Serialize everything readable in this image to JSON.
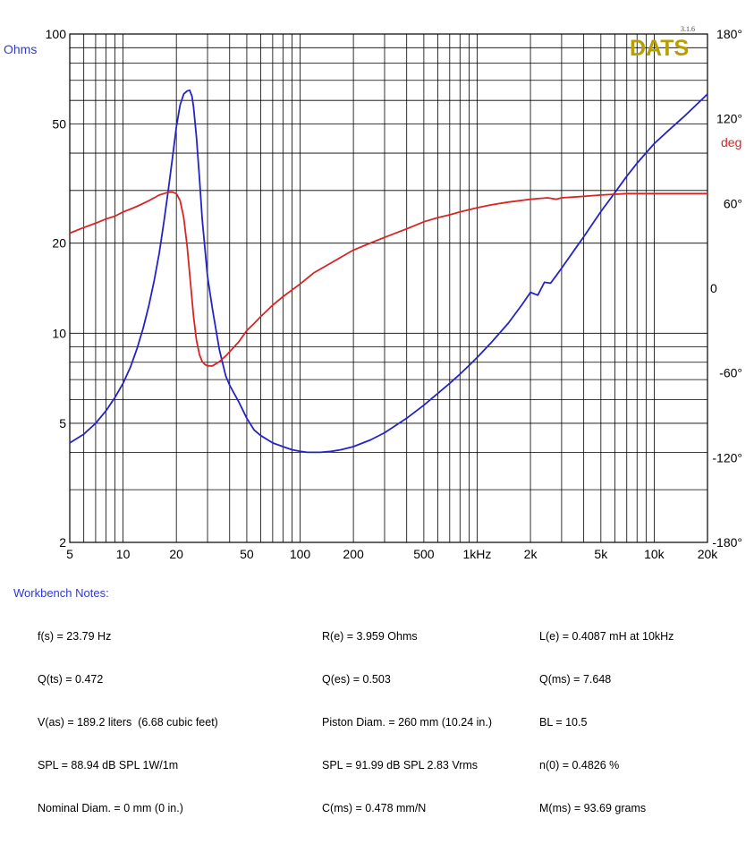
{
  "chart_data": {
    "type": "line",
    "title": "",
    "xlabel": "",
    "ylabel": "Ohms",
    "y2label": "deg",
    "x_scale": "log",
    "y_scale": "log",
    "xlim": [
      5,
      20000
    ],
    "ylim": [
      2,
      100
    ],
    "y2lim": [
      -180,
      180
    ],
    "grid": true,
    "logo": "DATS",
    "version": "3.1.6",
    "x_ticks": [
      {
        "value": 5,
        "label": "5"
      },
      {
        "value": 10,
        "label": "10"
      },
      {
        "value": 20,
        "label": "20"
      },
      {
        "value": 50,
        "label": "50"
      },
      {
        "value": 100,
        "label": "100"
      },
      {
        "value": 200,
        "label": "200"
      },
      {
        "value": 500,
        "label": "500"
      },
      {
        "value": 1000,
        "label": "1kHz"
      },
      {
        "value": 2000,
        "label": "2k"
      },
      {
        "value": 5000,
        "label": "5k"
      },
      {
        "value": 10000,
        "label": "10k"
      },
      {
        "value": 20000,
        "label": "20k"
      }
    ],
    "y_ticks": [
      {
        "value": 2,
        "label": "2"
      },
      {
        "value": 5,
        "label": "5"
      },
      {
        "value": 10,
        "label": "10"
      },
      {
        "value": 20,
        "label": "20"
      },
      {
        "value": 50,
        "label": "50"
      },
      {
        "value": 100,
        "label": "100"
      }
    ],
    "y2_ticks": [
      {
        "value": 180,
        "label": "180°"
      },
      {
        "value": 120,
        "label": "120°"
      },
      {
        "value": 60,
        "label": "60°"
      },
      {
        "value": 0,
        "label": "0"
      },
      {
        "value": -60,
        "label": "-60°"
      },
      {
        "value": -120,
        "label": "-120°"
      },
      {
        "value": -180,
        "label": "-180°"
      }
    ],
    "series": [
      {
        "color": "#2323c8",
        "axis": "left",
        "x": [
          5,
          6,
          7,
          8,
          9,
          10,
          11,
          12,
          13,
          14,
          15,
          16,
          17,
          18,
          19,
          20,
          21,
          22,
          23,
          23.79,
          24.5,
          25,
          26,
          27,
          28,
          30,
          32,
          35,
          38,
          40,
          45,
          50,
          55,
          60,
          70,
          80,
          90,
          100,
          110,
          120,
          130,
          150,
          170,
          200,
          250,
          300,
          400,
          500,
          600,
          700,
          800,
          900,
          1000,
          1200,
          1500,
          1800,
          2000,
          2200,
          2400,
          2600,
          2800,
          3000,
          3500,
          4000,
          5000,
          6000,
          7000,
          8000,
          10000,
          12000,
          15000,
          20000
        ],
        "y": [
          4.3,
          4.6,
          5.0,
          5.5,
          6.1,
          6.8,
          7.7,
          8.9,
          10.4,
          12.4,
          15.0,
          18.5,
          23.5,
          30.0,
          38.5,
          49.0,
          58.0,
          63.0,
          64.5,
          64.9,
          62.0,
          57.0,
          45.0,
          33.0,
          24.0,
          15.5,
          12.0,
          8.8,
          7.2,
          6.7,
          5.9,
          5.2,
          4.75,
          4.55,
          4.3,
          4.18,
          4.08,
          4.03,
          4.0,
          4.0,
          4.0,
          4.03,
          4.08,
          4.18,
          4.4,
          4.65,
          5.2,
          5.75,
          6.3,
          6.8,
          7.3,
          7.8,
          8.3,
          9.3,
          10.8,
          12.5,
          13.7,
          13.4,
          14.8,
          14.7,
          15.6,
          16.5,
          18.8,
          21.0,
          25.5,
          29.5,
          33.5,
          37.0,
          43.0,
          47.5,
          53.5,
          63.0
        ]
      },
      {
        "color": "#d92424",
        "axis": "right",
        "x": [
          5,
          6,
          7,
          8,
          9,
          10,
          11,
          12,
          13,
          14,
          15,
          16,
          17,
          18,
          19,
          20,
          21,
          22,
          23,
          24,
          25,
          26,
          27,
          28,
          29,
          30,
          32,
          35,
          38,
          40,
          45,
          50,
          55,
          60,
          70,
          80,
          100,
          120,
          150,
          200,
          250,
          300,
          400,
          500,
          600,
          700,
          800,
          1000,
          1200,
          1500,
          2000,
          2500,
          2800,
          3000,
          4000,
          5000,
          7000,
          10000,
          15000,
          20000
        ],
        "y": [
          39,
          43,
          46,
          49,
          51,
          54,
          56,
          58,
          60,
          62,
          64,
          66,
          67,
          68,
          68,
          67,
          62,
          50,
          30,
          5,
          -20,
          -37,
          -47,
          -52,
          -54,
          -55,
          -55,
          -52,
          -48,
          -45,
          -38,
          -30,
          -25,
          -20,
          -12,
          -6,
          3,
          11,
          18,
          27,
          32,
          36,
          42,
          47,
          50,
          52,
          54,
          57,
          59,
          61,
          63,
          64,
          63,
          64,
          65,
          66,
          67,
          67,
          67,
          67
        ]
      }
    ]
  },
  "notes": {
    "title": "Workbench Notes:",
    "col1": [
      "f(s) = 23.79 Hz",
      "Q(ts) = 0.472",
      "V(as) = 189.2 liters  (6.68 cubic feet)",
      "SPL = 88.94 dB SPL 1W/1m",
      "Nominal Diam. = 0 mm (0 in.)"
    ],
    "col2": [
      "R(e) = 3.959 Ohms",
      "Q(es) = 0.503",
      "Piston Diam. = 260 mm (10.24 in.)",
      "SPL = 91.99 dB SPL 2.83 Vrms",
      "C(ms) = 0.478 mm/N"
    ],
    "col3": [
      "L(e) = 0.4087 mH at 10kHz",
      "Q(ms) = 7.648",
      "BL = 10.5",
      "n(0) = 0.4826 %",
      "M(ms) = 93.69 grams"
    ]
  },
  "colors": {
    "impedance": "#2323c8",
    "phase": "#d92424",
    "grid": "#000000",
    "logo": "#b5a000",
    "notes_title": "#2f3ad0"
  }
}
